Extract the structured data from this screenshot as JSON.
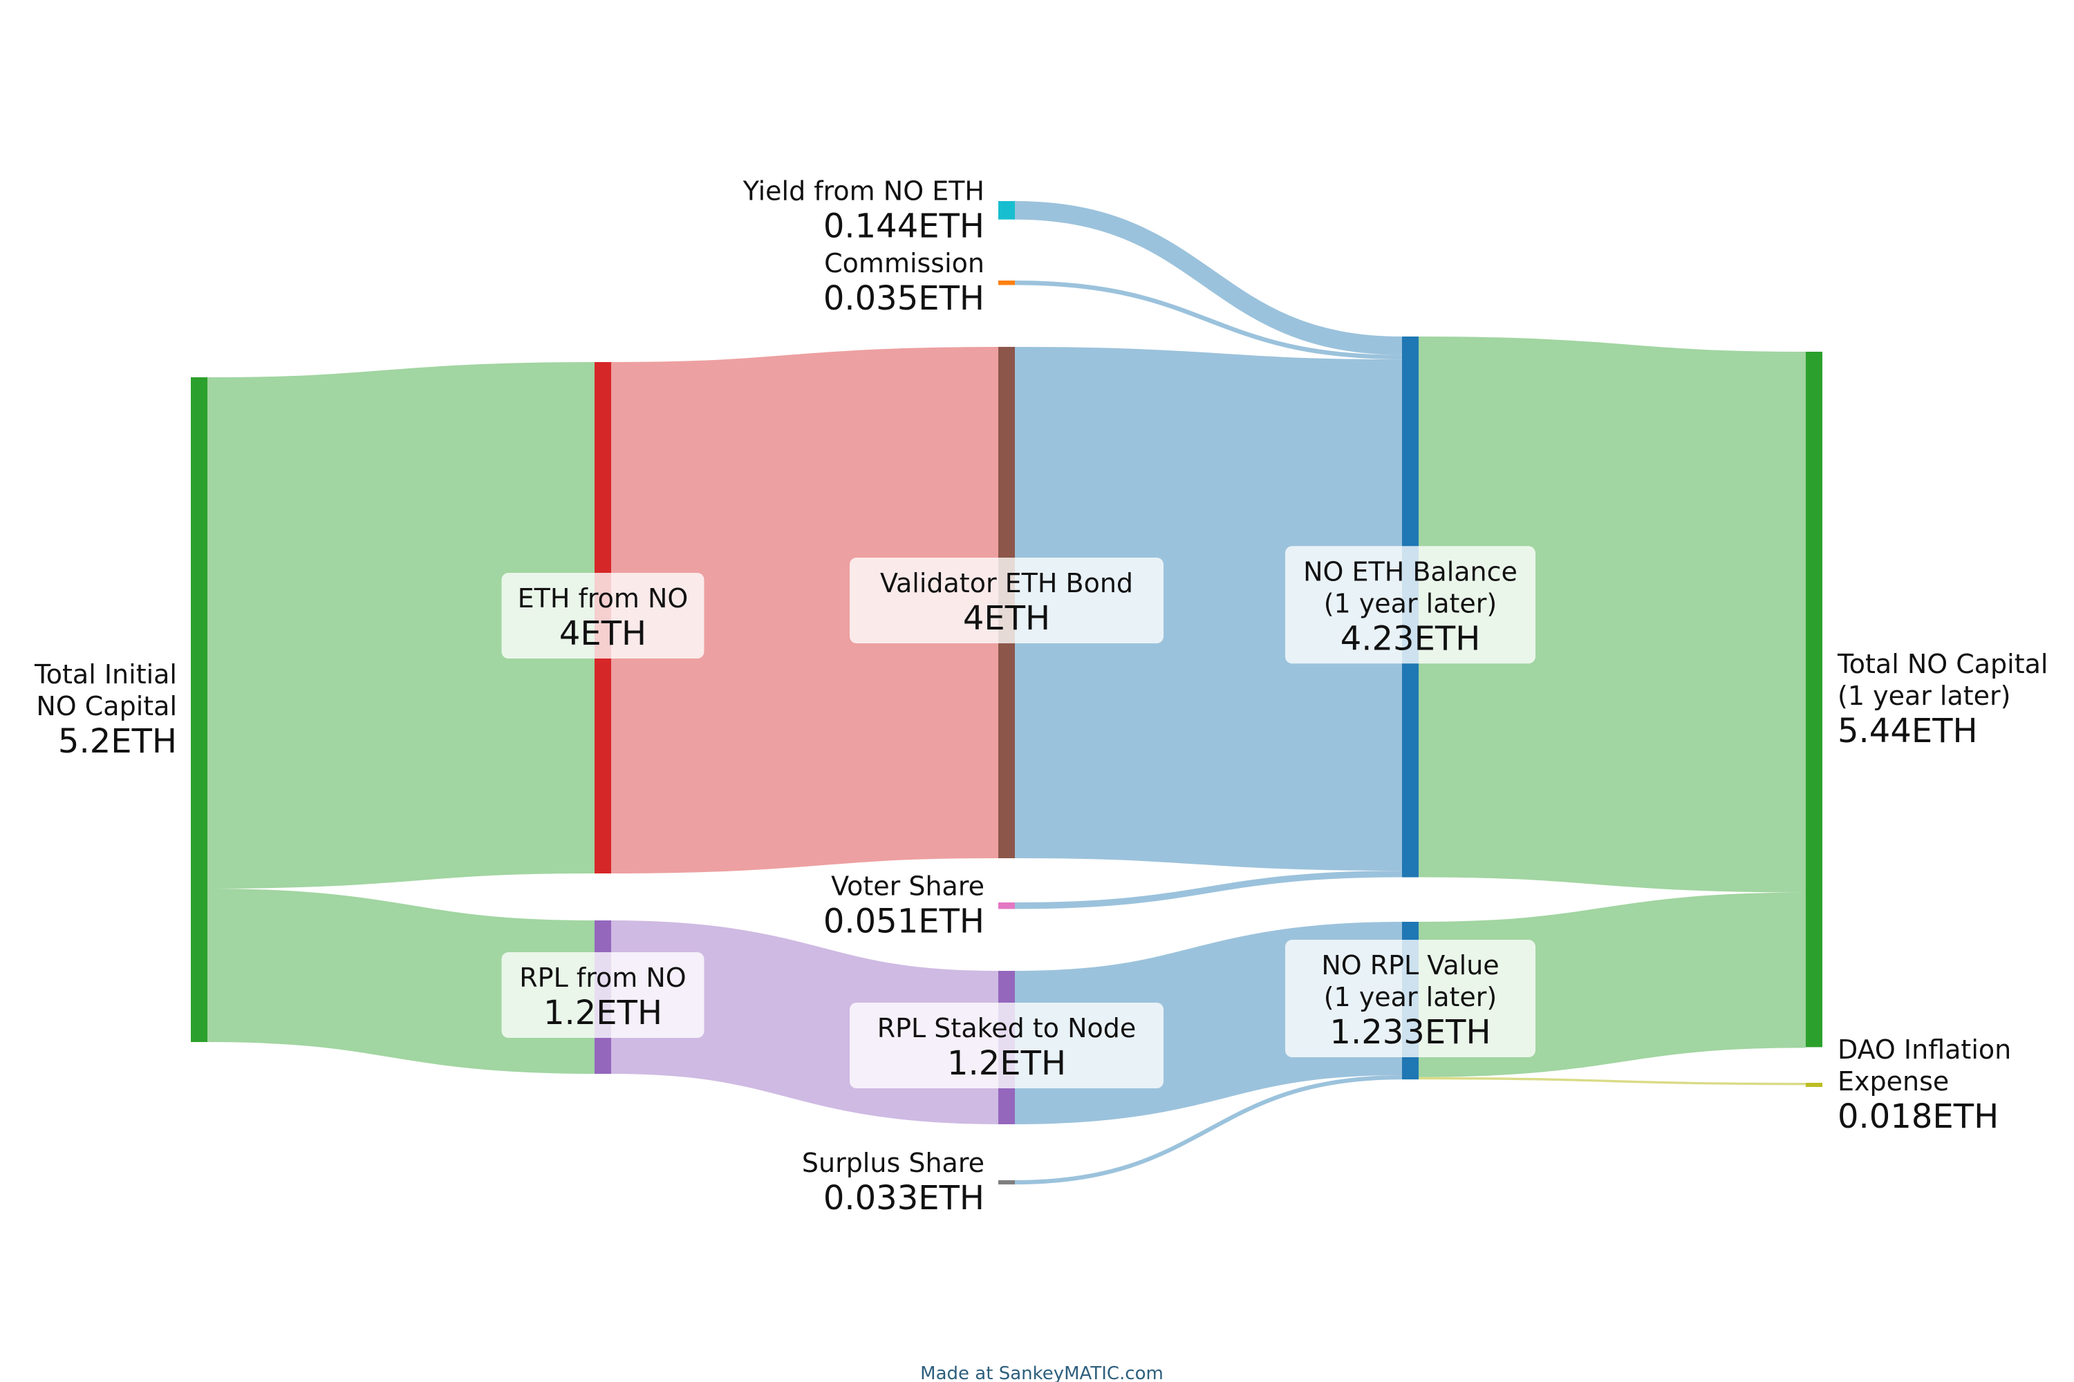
{
  "unit": "ETH",
  "credit": "Made at SankeyMATIC.com",
  "colors": {
    "green": "#2ca02c",
    "red": "#d62728",
    "brown": "#8c564b",
    "blue": "#1f77b4",
    "cyan": "#17becf",
    "orange": "#ff7f0e",
    "purple": "#9467bd",
    "pink": "#e377c2",
    "gray": "#7f7f7f",
    "olive": "#bcbd22",
    "flow_green": "#a1d5a1",
    "flow_red": "#eda0a1",
    "flow_blue": "#9bc2dc",
    "flow_purple": "#cfbae3"
  },
  "nodes": [
    {
      "id": "total_initial",
      "lines": [
        "Total Initial",
        "NO Capital"
      ],
      "value_label": "5.2ETH",
      "value": 5.2
    },
    {
      "id": "eth_from_no",
      "lines": [
        "ETH from NO"
      ],
      "value_label": "4ETH",
      "value": 4
    },
    {
      "id": "rpl_from_no",
      "lines": [
        "RPL from NO"
      ],
      "value_label": "1.2ETH",
      "value": 1.2
    },
    {
      "id": "yield_from_no_eth",
      "lines": [
        "Yield from NO ETH"
      ],
      "value_label": "0.144ETH",
      "value": 0.144
    },
    {
      "id": "commission",
      "lines": [
        "Commission"
      ],
      "value_label": "0.035ETH",
      "value": 0.035
    },
    {
      "id": "validator_eth_bond",
      "lines": [
        "Validator ETH Bond"
      ],
      "value_label": "4ETH",
      "value": 4
    },
    {
      "id": "voter_share",
      "lines": [
        "Voter Share"
      ],
      "value_label": "0.051ETH",
      "value": 0.051
    },
    {
      "id": "rpl_staked_to_node",
      "lines": [
        "RPL Staked to Node"
      ],
      "value_label": "1.2ETH",
      "value": 1.2
    },
    {
      "id": "surplus_share",
      "lines": [
        "Surplus Share"
      ],
      "value_label": "0.033ETH",
      "value": 0.033
    },
    {
      "id": "no_eth_balance",
      "lines": [
        "NO ETH Balance",
        "(1 year later)"
      ],
      "value_label": "4.23ETH",
      "value": 4.23
    },
    {
      "id": "no_rpl_value",
      "lines": [
        "NO RPL Value",
        "(1 year later)"
      ],
      "value_label": "1.233ETH",
      "value": 1.233
    },
    {
      "id": "total_no_capital",
      "lines": [
        "Total NO Capital",
        "(1 year later)"
      ],
      "value_label": "5.44ETH",
      "value": 5.44
    },
    {
      "id": "dao_inflation_expense",
      "lines": [
        "DAO Inflation",
        "Expense"
      ],
      "value_label": "0.018ETH",
      "value": 0.018
    }
  ],
  "flows": [
    {
      "from": "total_initial",
      "to": "eth_from_no",
      "value": 4
    },
    {
      "from": "total_initial",
      "to": "rpl_from_no",
      "value": 1.2
    },
    {
      "from": "eth_from_no",
      "to": "validator_eth_bond",
      "value": 4
    },
    {
      "from": "rpl_from_no",
      "to": "rpl_staked_to_node",
      "value": 1.2
    },
    {
      "from": "yield_from_no_eth",
      "to": "no_eth_balance",
      "value": 0.144
    },
    {
      "from": "commission",
      "to": "no_eth_balance",
      "value": 0.035
    },
    {
      "from": "validator_eth_bond",
      "to": "no_eth_balance",
      "value": 4
    },
    {
      "from": "voter_share",
      "to": "no_eth_balance",
      "value": 0.051
    },
    {
      "from": "rpl_staked_to_node",
      "to": "no_rpl_value",
      "value": 1.2
    },
    {
      "from": "surplus_share",
      "to": "no_rpl_value",
      "value": 0.033
    },
    {
      "from": "no_eth_balance",
      "to": "total_no_capital",
      "value": 4.23
    },
    {
      "from": "no_rpl_value",
      "to": "total_no_capital",
      "value": 1.215
    },
    {
      "from": "no_rpl_value",
      "to": "dao_inflation_expense",
      "value": 0.018
    }
  ]
}
